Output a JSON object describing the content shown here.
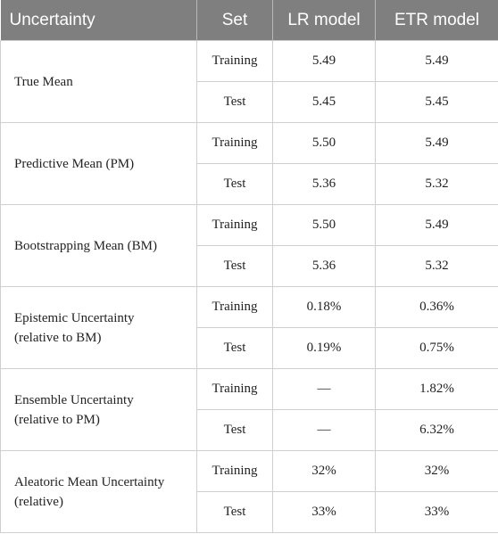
{
  "table": {
    "header": [
      "Uncertainty",
      "Set",
      "LR model",
      "ETR model"
    ],
    "groups": [
      {
        "label": [
          "True Mean"
        ],
        "rows": [
          [
            "Training",
            "5.49",
            "5.49"
          ],
          [
            "Test",
            "5.45",
            "5.45"
          ]
        ]
      },
      {
        "label": [
          "Predictive Mean (PM)"
        ],
        "rows": [
          [
            "Training",
            "5.50",
            "5.49"
          ],
          [
            "Test",
            "5.36",
            "5.32"
          ]
        ]
      },
      {
        "label": [
          "Bootstrapping Mean (BM)"
        ],
        "rows": [
          [
            "Training",
            "5.50",
            "5.49"
          ],
          [
            "Test",
            "5.36",
            "5.32"
          ]
        ]
      },
      {
        "label": [
          "Epistemic Uncertainty",
          "(relative to BM)"
        ],
        "rows": [
          [
            "Training",
            "0.18%",
            "0.36%"
          ],
          [
            "Test",
            "0.19%",
            "0.75%"
          ]
        ]
      },
      {
        "label": [
          "Ensemble Uncertainty",
          "(relative to PM)"
        ],
        "rows": [
          [
            "Training",
            "—",
            "1.82%"
          ],
          [
            "Test",
            "—",
            "6.32%"
          ]
        ]
      },
      {
        "label": [
          "Aleatoric Mean Uncertainty",
          "(relative)"
        ],
        "rows": [
          [
            "Training",
            "32%",
            "32%"
          ],
          [
            "Test",
            "33%",
            "33%"
          ]
        ]
      }
    ]
  }
}
